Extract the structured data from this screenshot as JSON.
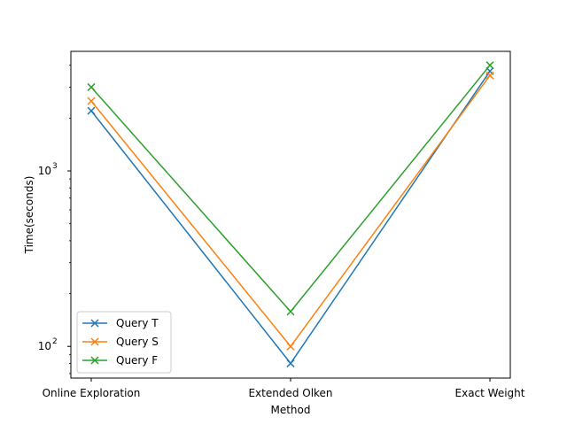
{
  "chart_data": {
    "type": "line",
    "title": "",
    "xlabel": "Method",
    "ylabel": "Time(seconds)",
    "yscale": "log",
    "ylim": [
      66,
      4800
    ],
    "categories": [
      "Online Exploration",
      "Extended Olken",
      "Exact Weight"
    ],
    "y_major_ticks": [
      {
        "value": 100,
        "label": "10",
        "exp": "2"
      },
      {
        "value": 1000,
        "label": "10",
        "exp": "3"
      }
    ],
    "marker": "x",
    "grid": false,
    "legend": "lower-left",
    "series": [
      {
        "name": "Query T",
        "color": "#1f77b4",
        "values": [
          2200,
          80,
          3700
        ]
      },
      {
        "name": "Query S",
        "color": "#ff7f0e",
        "values": [
          2500,
          100,
          3500
        ]
      },
      {
        "name": "Query F",
        "color": "#2ca02c",
        "values": [
          3000,
          158,
          4000
        ]
      }
    ]
  }
}
